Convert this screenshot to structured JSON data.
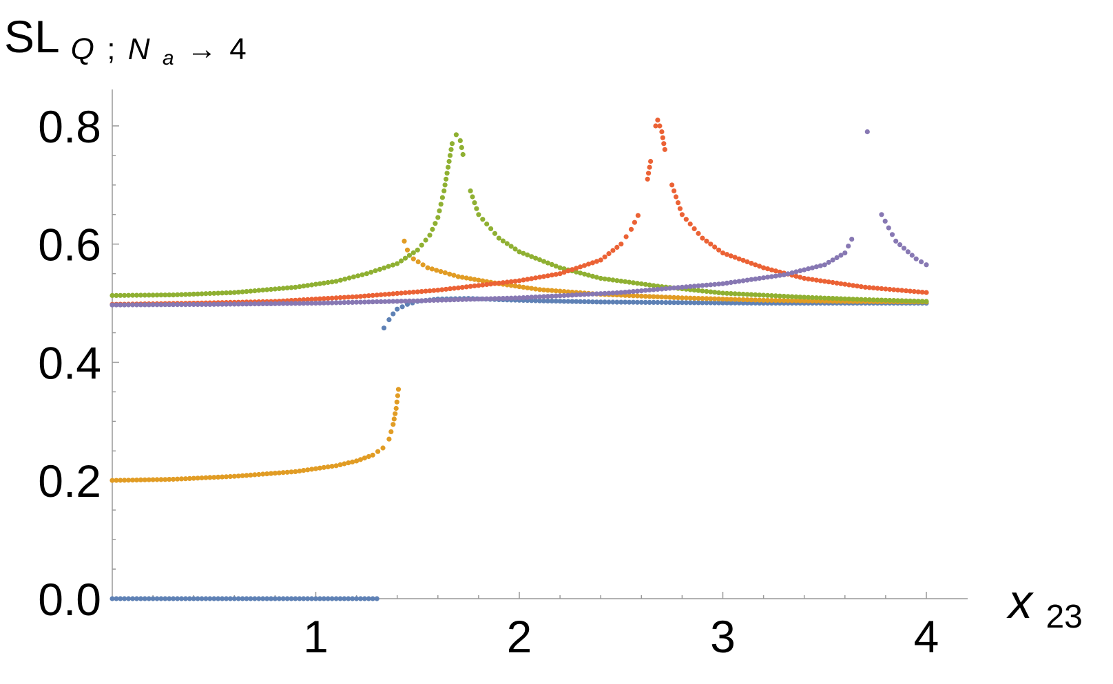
{
  "chart_data": {
    "type": "scatter",
    "ylabel": {
      "base": "SL",
      "subscript": {
        "q": "Q",
        "sep": ";",
        "n": "N",
        "n_sub": "a",
        "arrow": "→",
        "val": "4"
      }
    },
    "xlabel": {
      "base": "x",
      "subscript": "23"
    },
    "xlim": [
      0,
      4.2
    ],
    "ylim": [
      0,
      0.84
    ],
    "x_ticks": [
      {
        "value": 1,
        "label": "1"
      },
      {
        "value": 2,
        "label": "2"
      },
      {
        "value": 3,
        "label": "3"
      },
      {
        "value": 4,
        "label": "4"
      }
    ],
    "y_ticks": [
      {
        "value": 0.0,
        "label": "0.0"
      },
      {
        "value": 0.2,
        "label": "0.2"
      },
      {
        "value": 0.4,
        "label": "0.4"
      },
      {
        "value": 0.6,
        "label": "0.6"
      },
      {
        "value": 0.8,
        "label": "0.8"
      }
    ],
    "grid": false,
    "series": [
      {
        "color": "#5e81b5",
        "points": [
          [
            0.0,
            0.0
          ],
          [
            0.3,
            0.0
          ],
          [
            0.6,
            0.0
          ],
          [
            0.9,
            0.0
          ],
          [
            1.2,
            0.0
          ],
          [
            1.32,
            0.0
          ],
          [
            1.335,
            0.458
          ],
          [
            1.36,
            0.472
          ],
          [
            1.38,
            0.482
          ],
          [
            1.4,
            0.49
          ],
          [
            1.45,
            0.498
          ],
          [
            1.5,
            0.503
          ],
          [
            1.6,
            0.507
          ],
          [
            1.75,
            0.508
          ],
          [
            1.9,
            0.506
          ],
          [
            2.1,
            0.504
          ],
          [
            2.4,
            0.502
          ],
          [
            2.8,
            0.501
          ],
          [
            3.2,
            0.5
          ],
          [
            3.6,
            0.5
          ],
          [
            4.0,
            0.5
          ]
        ]
      },
      {
        "color": "#e19c24",
        "points": [
          [
            0.0,
            0.2
          ],
          [
            0.3,
            0.202
          ],
          [
            0.6,
            0.207
          ],
          [
            0.9,
            0.215
          ],
          [
            1.1,
            0.225
          ],
          [
            1.2,
            0.233
          ],
          [
            1.28,
            0.243
          ],
          [
            1.33,
            0.255
          ],
          [
            1.36,
            0.27
          ],
          [
            1.38,
            0.295
          ],
          [
            1.395,
            0.322
          ],
          [
            1.41,
            0.365
          ],
          [
            1.415,
            0.46
          ],
          [
            1.435,
            0.605
          ],
          [
            1.45,
            0.59
          ],
          [
            1.48,
            0.575
          ],
          [
            1.55,
            0.56
          ],
          [
            1.7,
            0.545
          ],
          [
            1.9,
            0.533
          ],
          [
            2.1,
            0.523
          ],
          [
            2.4,
            0.515
          ],
          [
            2.8,
            0.509
          ],
          [
            3.2,
            0.505
          ],
          [
            3.6,
            0.503
          ],
          [
            4.0,
            0.502
          ]
        ]
      },
      {
        "color": "#8fb032",
        "points": [
          [
            0.0,
            0.513
          ],
          [
            0.3,
            0.514
          ],
          [
            0.6,
            0.518
          ],
          [
            0.9,
            0.527
          ],
          [
            1.1,
            0.537
          ],
          [
            1.25,
            0.55
          ],
          [
            1.4,
            0.567
          ],
          [
            1.5,
            0.59
          ],
          [
            1.56,
            0.615
          ],
          [
            1.6,
            0.645
          ],
          [
            1.63,
            0.69
          ],
          [
            1.65,
            0.73
          ],
          [
            1.67,
            0.77
          ],
          [
            1.69,
            0.785
          ],
          [
            1.71,
            0.775
          ],
          [
            1.73,
            0.74
          ],
          [
            1.76,
            0.69
          ],
          [
            1.8,
            0.65
          ],
          [
            1.9,
            0.61
          ],
          [
            2.0,
            0.587
          ],
          [
            2.2,
            0.56
          ],
          [
            2.4,
            0.542
          ],
          [
            2.7,
            0.528
          ],
          [
            3.0,
            0.517
          ],
          [
            3.4,
            0.51
          ],
          [
            3.7,
            0.506
          ],
          [
            4.0,
            0.503
          ]
        ]
      },
      {
        "color": "#eb6235",
        "points": [
          [
            0.0,
            0.498
          ],
          [
            0.4,
            0.5
          ],
          [
            0.8,
            0.503
          ],
          [
            1.2,
            0.511
          ],
          [
            1.6,
            0.522
          ],
          [
            2.0,
            0.538
          ],
          [
            2.2,
            0.55
          ],
          [
            2.4,
            0.573
          ],
          [
            2.5,
            0.6
          ],
          [
            2.55,
            0.625
          ],
          [
            2.6,
            0.66
          ],
          [
            2.63,
            0.71
          ],
          [
            2.65,
            0.75
          ],
          [
            2.67,
            0.8
          ],
          [
            2.68,
            0.81
          ],
          [
            2.7,
            0.79
          ],
          [
            2.72,
            0.75
          ],
          [
            2.75,
            0.7
          ],
          [
            2.8,
            0.65
          ],
          [
            2.9,
            0.61
          ],
          [
            3.0,
            0.585
          ],
          [
            3.2,
            0.56
          ],
          [
            3.4,
            0.542
          ],
          [
            3.7,
            0.527
          ],
          [
            4.0,
            0.518
          ]
        ]
      },
      {
        "color": "#8778b3",
        "points": [
          [
            0.0,
            0.497
          ],
          [
            0.5,
            0.498
          ],
          [
            1.0,
            0.5
          ],
          [
            1.5,
            0.504
          ],
          [
            2.0,
            0.509
          ],
          [
            2.5,
            0.518
          ],
          [
            3.0,
            0.533
          ],
          [
            3.3,
            0.548
          ],
          [
            3.5,
            0.565
          ],
          [
            3.6,
            0.585
          ],
          [
            3.65,
            0.62
          ],
          [
            3.68,
            0.68
          ],
          [
            3.7,
            0.74
          ],
          [
            3.71,
            0.79
          ],
          [
            3.72,
            0.8
          ],
          [
            3.735,
            0.75
          ],
          [
            3.75,
            0.7
          ],
          [
            3.78,
            0.65
          ],
          [
            3.85,
            0.605
          ],
          [
            3.95,
            0.575
          ],
          [
            4.0,
            0.565
          ]
        ]
      }
    ]
  }
}
